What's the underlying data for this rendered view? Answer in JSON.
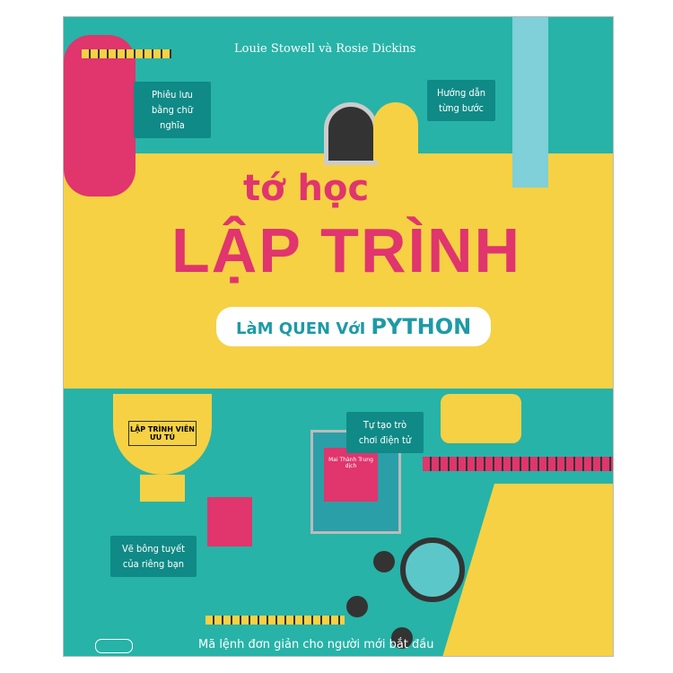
{
  "authors": "Louie Stowell và Rosie Dickins",
  "title_line1": "tớ học",
  "title_line2": "LẬP TRÌNH",
  "subtitle_prefix": "LàM QUEN VớI",
  "subtitle_highlight": "PYTHON",
  "bubbles": {
    "adventure": "Phiêu lưu bằng chữ nghĩa",
    "steps": "Hướng dẫn từng bước",
    "game": "Tự tạo trò chơi điện tử",
    "snowflake": "Vẽ bông tuyết của riêng bạn"
  },
  "trophy_label": "LẬP TRÌNH VIÊN ƯU TÚ",
  "translator": "Mai Thành Trung dịch",
  "tagline": "Mã lệnh đơn giản cho người mới bắt đầu",
  "colors": {
    "teal": "#27b3a8",
    "yellow": "#f6d144",
    "pink": "#e0356d"
  }
}
